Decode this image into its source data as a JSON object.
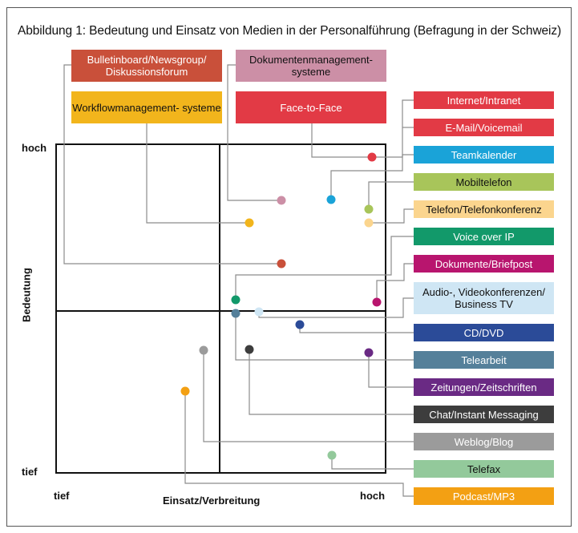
{
  "title": "Abbildung 1: Bedeutung und Einsatz von Medien in der Personalführung (Befragung in der Schweiz)",
  "axes": {
    "y_label": "Bedeutung",
    "x_label": "Einsatz/Verbreitung",
    "y_high": "hoch",
    "y_low": "tief",
    "x_low": "tief",
    "x_high": "hoch"
  },
  "media": [
    {
      "id": "bulletinboard",
      "label": "Bulletinboard/Newsgroup/ Diskussionsforum",
      "color": "#c9503a",
      "text_color": "#ffffff"
    },
    {
      "id": "dokumentenmanagement",
      "label": "Dokumentenmanagement- systeme",
      "color": "#cc8fa6",
      "text_color": "#111111"
    },
    {
      "id": "workflowmanagement",
      "label": "Workflowmanagement- systeme",
      "color": "#f2b51c",
      "text_color": "#111111"
    },
    {
      "id": "face-to-face",
      "label": "Face-to-Face",
      "color": "#e23a45",
      "text_color": "#ffffff"
    },
    {
      "id": "internet-intranet",
      "label": "Internet/Intranet",
      "color": "#e23a45",
      "text_color": "#ffffff"
    },
    {
      "id": "email-voicemail",
      "label": "E-Mail/Voicemail",
      "color": "#e23a45",
      "text_color": "#ffffff"
    },
    {
      "id": "teamkalender",
      "label": "Teamkalender",
      "color": "#1aa3d8",
      "text_color": "#ffffff"
    },
    {
      "id": "mobiltelefon",
      "label": "Mobiltelefon",
      "color": "#a8c55a",
      "text_color": "#111111"
    },
    {
      "id": "telefon-konferenz",
      "label": "Telefon/Telefonkonferenz",
      "color": "#fbd58e",
      "text_color": "#111111"
    },
    {
      "id": "voice-over-ip",
      "label": "Voice over IP",
      "color": "#12996a",
      "text_color": "#ffffff"
    },
    {
      "id": "dokumente-briefpost",
      "label": "Dokumente/Briefpost",
      "color": "#b8156e",
      "text_color": "#ffffff"
    },
    {
      "id": "audio-video",
      "label": "Audio-, Videokonferenzen/ Business TV",
      "color": "#cfe6f4",
      "text_color": "#111111"
    },
    {
      "id": "cd-dvd",
      "label": "CD/DVD",
      "color": "#2b4b98",
      "text_color": "#ffffff"
    },
    {
      "id": "telearbeit",
      "label": "Telearbeit",
      "color": "#55809a",
      "text_color": "#ffffff"
    },
    {
      "id": "zeitungen",
      "label": "Zeitungen/Zeitschriften",
      "color": "#6a2a84",
      "text_color": "#ffffff"
    },
    {
      "id": "chat",
      "label": "Chat/Instant Messaging",
      "color": "#3d3d3d",
      "text_color": "#ffffff"
    },
    {
      "id": "weblog",
      "label": "Weblog/Blog",
      "color": "#9b9b9b",
      "text_color": "#ffffff"
    },
    {
      "id": "telefax",
      "label": "Telefax",
      "color": "#93c99b",
      "text_color": "#111111"
    },
    {
      "id": "podcast",
      "label": "Podcast/MP3",
      "color": "#f3a013",
      "text_color": "#ffffff"
    }
  ]
}
